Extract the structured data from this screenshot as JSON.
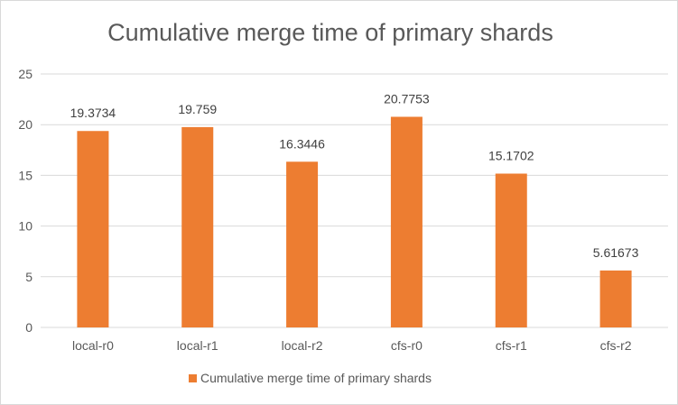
{
  "chart_data": {
    "type": "bar",
    "title": "Cumulative merge time of primary shards",
    "categories": [
      "local-r0",
      "local-r1",
      "local-r2",
      "cfs-r0",
      "cfs-r1",
      "cfs-r2"
    ],
    "series": [
      {
        "name": "Cumulative merge time of primary shards",
        "values": [
          19.3734,
          19.759,
          16.3446,
          20.7753,
          15.1702,
          5.61673
        ],
        "labels": [
          "19.3734",
          "19.759",
          "16.3446",
          "20.7753",
          "15.1702",
          "5.61673"
        ]
      }
    ],
    "ylim": [
      0,
      25
    ],
    "yticks": [
      "0",
      "5",
      "10",
      "15",
      "20",
      "25"
    ],
    "grid": true,
    "legend_position": "bottom",
    "colors": {
      "bar": "#ED7D31",
      "grid": "#D9D9D9"
    }
  }
}
